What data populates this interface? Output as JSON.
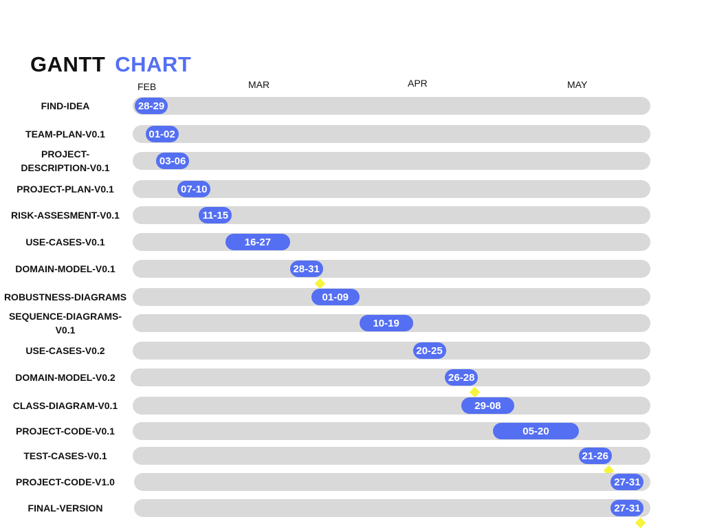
{
  "title": {
    "word1": "GANTT",
    "word2": "CHART"
  },
  "colors": {
    "accent": "#546ff2",
    "track": "#d9d9d9",
    "milestone": "#f6f53e",
    "text": "#111111"
  },
  "chart_data": {
    "type": "gantt",
    "months": [
      "FEB",
      "MAR",
      "APR",
      "MAY"
    ],
    "tasks": [
      {
        "name": "FIND-IDEA",
        "range": "28-29",
        "start": "02-28",
        "end": "02-29"
      },
      {
        "name": "TEAM-PLAN-V0.1",
        "range": "01-02",
        "start": "03-01",
        "end": "03-02"
      },
      {
        "name": "PROJECT-\nDESCRIPTION-V0.1",
        "range": "03-06",
        "start": "03-03",
        "end": "03-06"
      },
      {
        "name": "PROJECT-PLAN-V0.1",
        "range": "07-10",
        "start": "03-07",
        "end": "03-10"
      },
      {
        "name": "RISK-ASSESMENT-V0.1",
        "range": "11-15",
        "start": "03-11",
        "end": "03-15"
      },
      {
        "name": "USE-CASES-V0.1",
        "range": "16-27",
        "start": "03-16",
        "end": "03-27"
      },
      {
        "name": "DOMAIN-MODEL-V0.1",
        "range": "28-31",
        "start": "03-28",
        "end": "03-31",
        "milestone": true
      },
      {
        "name": "ROBUSTNESS-DIAGRAMS",
        "range": "01-09",
        "start": "04-01",
        "end": "04-09"
      },
      {
        "name": "SEQUENCE-DIAGRAMS-\nV0.1",
        "range": "10-19",
        "start": "04-10",
        "end": "04-19"
      },
      {
        "name": "USE-CASES-V0.2",
        "range": "20-25",
        "start": "04-20",
        "end": "04-25"
      },
      {
        "name": "DOMAIN-MODEL-V0.2",
        "range": "26-28",
        "start": "04-26",
        "end": "04-28",
        "milestone": true
      },
      {
        "name": "CLASS-DIAGRAM-V0.1",
        "range": "29-08",
        "start": "04-29",
        "end": "05-08"
      },
      {
        "name": "PROJECT-CODE-V0.1",
        "range": "05-20",
        "start": "05-05",
        "end": "05-20"
      },
      {
        "name": "TEST-CASES-V0.1",
        "range": "21-26",
        "start": "05-21",
        "end": "05-26",
        "milestone": true
      },
      {
        "name": "PROJECT-CODE-V1.0",
        "range": "27-31",
        "start": "05-27",
        "end": "05-31"
      },
      {
        "name": "FINAL-VERSION",
        "range": "27-31",
        "start": "05-27",
        "end": "05-31",
        "milestone": true
      }
    ]
  }
}
